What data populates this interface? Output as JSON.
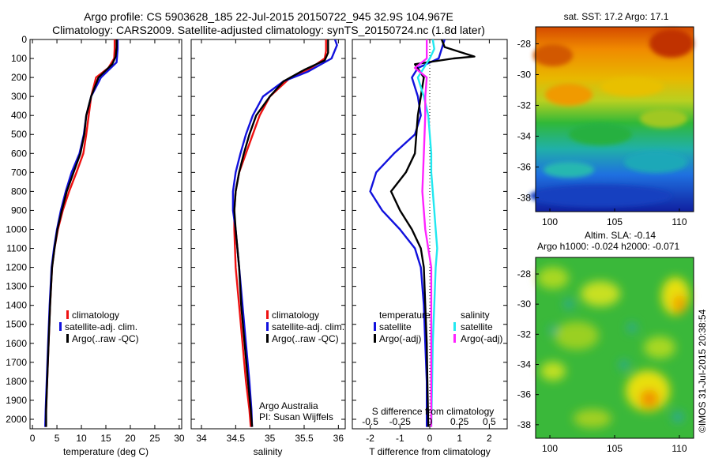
{
  "title_line1": "Argo profile: CS 5903628_185 22-Jul-2015 20150722_945 32.9S 104.967E",
  "title_line2": "Climatology: CARS2009. Satellite-adjusted climatology: synTS_20150724.nc (1.8d later)",
  "colors": {
    "red": "#ee1111",
    "blue": "#1111dd",
    "black": "#000000",
    "cyan": "#22e8f0",
    "magenta": "#ff22ff"
  },
  "chart_data": [
    {
      "type": "line",
      "name": "temperature",
      "xlabel": "temperature (deg C)",
      "xlim": [
        -0.5,
        30.5
      ],
      "xticks": [
        0,
        5,
        10,
        15,
        20,
        25,
        30
      ],
      "ylim": [
        2050,
        0
      ],
      "yticks": [
        0,
        100,
        200,
        300,
        400,
        500,
        600,
        700,
        800,
        900,
        1000,
        1100,
        1200,
        1300,
        1400,
        1500,
        1600,
        1700,
        1800,
        1900,
        2000
      ],
      "legend": [
        "climatology",
        "satellite-adj. clim.",
        "Argo(..raw -QC)"
      ],
      "series": [
        {
          "name": "climatology",
          "color": "red",
          "points": [
            [
              16.8,
              0
            ],
            [
              16.8,
              50
            ],
            [
              16.7,
              100
            ],
            [
              15.5,
              150
            ],
            [
              13.0,
              200
            ],
            [
              12.0,
              300
            ],
            [
              11.5,
              400
            ],
            [
              11.0,
              500
            ],
            [
              10.4,
              600
            ],
            [
              9.0,
              700
            ],
            [
              7.5,
              800
            ],
            [
              6.2,
              900
            ],
            [
              5.2,
              1000
            ],
            [
              4.5,
              1100
            ],
            [
              4.0,
              1200
            ],
            [
              3.6,
              1400
            ],
            [
              3.3,
              1600
            ],
            [
              3.0,
              1800
            ],
            [
              2.8,
              1950
            ],
            [
              2.7,
              2040
            ]
          ]
        },
        {
          "name": "satellite-adj. clim.",
          "color": "blue",
          "points": [
            [
              17.4,
              0
            ],
            [
              17.4,
              50
            ],
            [
              17.2,
              120
            ],
            [
              14.0,
              200
            ],
            [
              12.0,
              300
            ],
            [
              11.0,
              400
            ],
            [
              10.5,
              500
            ],
            [
              9.6,
              600
            ],
            [
              8.0,
              700
            ],
            [
              6.8,
              800
            ],
            [
              5.8,
              900
            ],
            [
              5.0,
              1000
            ],
            [
              4.4,
              1100
            ],
            [
              3.9,
              1200
            ],
            [
              3.5,
              1400
            ],
            [
              3.2,
              1600
            ],
            [
              2.9,
              1800
            ],
            [
              2.7,
              1950
            ],
            [
              2.6,
              2040
            ]
          ]
        },
        {
          "name": "Argo(..raw -QC)",
          "color": "black",
          "points": [
            [
              17.2,
              0
            ],
            [
              17.2,
              40
            ],
            [
              17.0,
              90
            ],
            [
              16.3,
              130
            ],
            [
              13.5,
              200
            ],
            [
              12.0,
              300
            ],
            [
              11.0,
              400
            ],
            [
              10.6,
              500
            ],
            [
              9.8,
              600
            ],
            [
              8.4,
              700
            ],
            [
              7.0,
              800
            ],
            [
              6.0,
              900
            ],
            [
              5.1,
              1000
            ],
            [
              4.5,
              1100
            ],
            [
              4.0,
              1200
            ],
            [
              3.6,
              1400
            ],
            [
              3.3,
              1600
            ],
            [
              3.0,
              1800
            ],
            [
              2.8,
              1950
            ],
            [
              2.8,
              2040
            ]
          ]
        }
      ]
    },
    {
      "type": "line",
      "name": "salinity",
      "xlabel": "salinity",
      "xlim": [
        33.85,
        36.1
      ],
      "xticks": [
        34,
        34.5,
        35,
        35.5,
        36
      ],
      "ylim": [
        2050,
        0
      ],
      "legend": [
        "climatology",
        "satellite-adj. clim.",
        "Argo(..raw -QC)"
      ],
      "annotations": [
        "Argo Australia",
        "PI: Susan Wijffels"
      ],
      "series": [
        {
          "name": "climatology",
          "color": "red",
          "points": [
            [
              35.82,
              0
            ],
            [
              35.82,
              60
            ],
            [
              35.8,
              100
            ],
            [
              35.6,
              150
            ],
            [
              35.3,
              200
            ],
            [
              35.0,
              300
            ],
            [
              34.85,
              400
            ],
            [
              34.75,
              500
            ],
            [
              34.65,
              600
            ],
            [
              34.55,
              700
            ],
            [
              34.5,
              800
            ],
            [
              34.48,
              900
            ],
            [
              34.48,
              1000
            ],
            [
              34.5,
              1200
            ],
            [
              34.55,
              1400
            ],
            [
              34.6,
              1600
            ],
            [
              34.65,
              1800
            ],
            [
              34.7,
              1950
            ],
            [
              34.72,
              2040
            ]
          ]
        },
        {
          "name": "satellite-adj. clim.",
          "color": "blue",
          "points": [
            [
              35.95,
              0
            ],
            [
              35.98,
              30
            ],
            [
              35.9,
              100
            ],
            [
              35.55,
              170
            ],
            [
              35.2,
              220
            ],
            [
              34.9,
              300
            ],
            [
              34.75,
              400
            ],
            [
              34.65,
              500
            ],
            [
              34.57,
              600
            ],
            [
              34.5,
              700
            ],
            [
              34.46,
              800
            ],
            [
              34.46,
              900
            ],
            [
              34.5,
              1000
            ],
            [
              34.55,
              1200
            ],
            [
              34.6,
              1400
            ],
            [
              34.65,
              1600
            ],
            [
              34.7,
              1800
            ],
            [
              34.73,
              1950
            ],
            [
              34.74,
              2040
            ]
          ]
        },
        {
          "name": "Argo(..raw -QC)",
          "color": "black",
          "points": [
            [
              35.85,
              0
            ],
            [
              35.85,
              70
            ],
            [
              35.8,
              110
            ],
            [
              35.5,
              160
            ],
            [
              35.2,
              220
            ],
            [
              35.0,
              300
            ],
            [
              34.8,
              400
            ],
            [
              34.7,
              500
            ],
            [
              34.62,
              600
            ],
            [
              34.55,
              700
            ],
            [
              34.5,
              800
            ],
            [
              34.48,
              900
            ],
            [
              34.5,
              1000
            ],
            [
              34.55,
              1200
            ],
            [
              34.58,
              1400
            ],
            [
              34.63,
              1600
            ],
            [
              34.68,
              1800
            ],
            [
              34.72,
              1950
            ],
            [
              34.74,
              2040
            ]
          ]
        }
      ]
    },
    {
      "type": "line",
      "name": "difference",
      "xlabel": "T difference from climatology",
      "xlabel_top": "S difference from climatology",
      "xlim": [
        -2.6,
        2.6
      ],
      "xticks": [
        -2,
        -1,
        0,
        1,
        2
      ],
      "xticks_top": [
        "-0.5",
        "-0.25",
        "0",
        "0.25",
        "0.5"
      ],
      "ylim": [
        2050,
        0
      ],
      "legend_temperature_title": "temperature",
      "legend_salinity_title": "salinity",
      "legend_entries": {
        "t_satellite": "satellite",
        "t_argo": "Argo(-adj)",
        "s_satellite": "satellite",
        "s_argo": "Argo(-adj)"
      },
      "series": [
        {
          "name": "temperature satellite",
          "color": "blue",
          "points": [
            [
              0.5,
              0
            ],
            [
              0.3,
              100
            ],
            [
              -0.4,
              150
            ],
            [
              -0.6,
              200
            ],
            [
              -0.4,
              300
            ],
            [
              -0.3,
              400
            ],
            [
              -0.5,
              500
            ],
            [
              -1.2,
              600
            ],
            [
              -1.8,
              700
            ],
            [
              -2.0,
              800
            ],
            [
              -1.6,
              900
            ],
            [
              -1.0,
              1000
            ],
            [
              -0.5,
              1100
            ],
            [
              -0.3,
              1200
            ],
            [
              -0.2,
              1400
            ],
            [
              -0.15,
              1600
            ],
            [
              -0.1,
              1800
            ],
            [
              -0.1,
              2040
            ]
          ]
        },
        {
          "name": "temperature Argo(-adj)",
          "color": "black",
          "points": [
            [
              0.4,
              0
            ],
            [
              0.5,
              40
            ],
            [
              1.5,
              90
            ],
            [
              0.8,
              100
            ],
            [
              -0.5,
              130
            ],
            [
              -0.2,
              200
            ],
            [
              -0.3,
              300
            ],
            [
              -0.4,
              400
            ],
            [
              -0.5,
              600
            ],
            [
              -0.8,
              700
            ],
            [
              -1.3,
              800
            ],
            [
              -1.0,
              900
            ],
            [
              -0.6,
              1000
            ],
            [
              -0.3,
              1100
            ],
            [
              -0.2,
              1200
            ],
            [
              -0.15,
              1400
            ],
            [
              -0.1,
              1600
            ],
            [
              -0.08,
              1800
            ],
            [
              -0.05,
              2040
            ]
          ]
        },
        {
          "name": "salinity satellite",
          "color": "cyan",
          "points": [
            [
              0.1,
              0
            ],
            [
              0.15,
              50
            ],
            [
              0.0,
              100
            ],
            [
              -0.4,
              200
            ],
            [
              -0.2,
              300
            ],
            [
              -0.05,
              400
            ],
            [
              0.0,
              500
            ],
            [
              0.05,
              600
            ],
            [
              0.05,
              700
            ],
            [
              0.1,
              800
            ],
            [
              0.15,
              900
            ],
            [
              0.2,
              1000
            ],
            [
              0.25,
              1100
            ],
            [
              0.2,
              1200
            ],
            [
              0.15,
              1400
            ],
            [
              0.1,
              1600
            ],
            [
              0.08,
              1800
            ],
            [
              0.05,
              2040
            ]
          ]
        },
        {
          "name": "salinity Argo(-adj)",
          "color": "magenta",
          "points": [
            [
              -0.1,
              0
            ],
            [
              -0.1,
              100
            ],
            [
              -0.5,
              150
            ],
            [
              -0.1,
              200
            ],
            [
              -0.15,
              300
            ],
            [
              -0.15,
              400
            ],
            [
              -0.2,
              600
            ],
            [
              -0.25,
              800
            ],
            [
              -0.15,
              1000
            ],
            [
              0.05,
              1200
            ],
            [
              0.05,
              1400
            ],
            [
              0.05,
              1600
            ],
            [
              0.05,
              1800
            ],
            [
              0.05,
              2040
            ]
          ]
        }
      ]
    },
    {
      "type": "heatmap",
      "name": "sst-map",
      "title": "sat. SST: 17.2  Argo: 17.1",
      "xticks": [
        100,
        105,
        110
      ],
      "yticks": [
        -28,
        -30,
        -32,
        -34,
        -36,
        -38
      ],
      "xlim": [
        98.9,
        111.1
      ],
      "ylim": [
        -38.9,
        -26.9
      ]
    },
    {
      "type": "heatmap",
      "name": "sla-map",
      "title_line1": "Altim. SLA: -0.14",
      "title_line2": "Argo h1000: -0.024  h2000: -0.071",
      "xticks": [
        100,
        105,
        110
      ],
      "yticks": [
        -28,
        -30,
        -32,
        -34,
        -36,
        -38
      ],
      "xlim": [
        98.9,
        111.1
      ],
      "ylim": [
        -38.9,
        -26.9
      ],
      "side_label": "©IMOS 31-Jul-2015 20:38:54"
    }
  ]
}
